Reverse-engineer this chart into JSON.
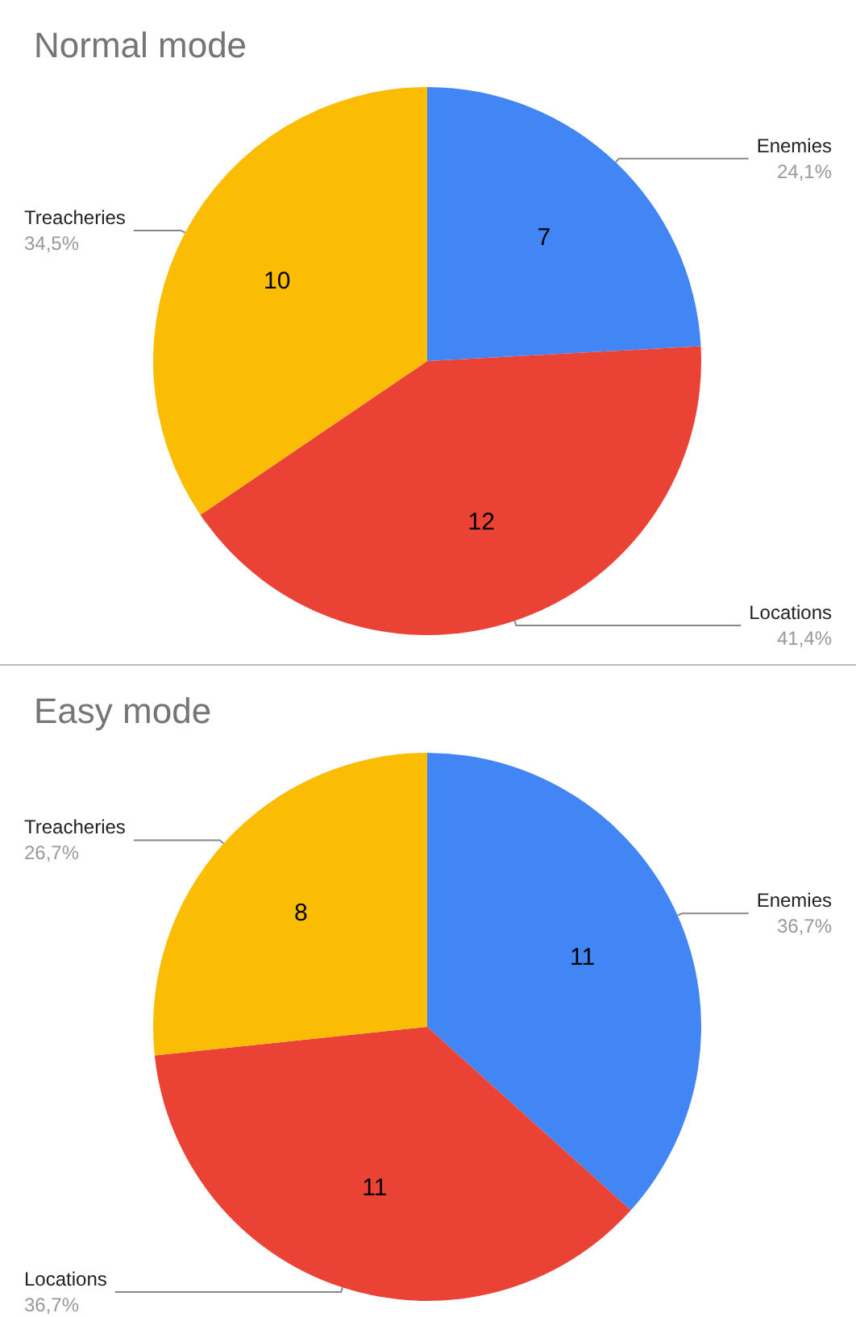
{
  "chart_data": [
    {
      "type": "pie",
      "title": "Normal mode",
      "categories": [
        "Enemies",
        "Locations",
        "Treacheries"
      ],
      "values": [
        7,
        12,
        10
      ],
      "colors": [
        "#4285f4",
        "#ea4335",
        "#fbbc04"
      ],
      "data_labels": true,
      "annotations": [
        "24,1%",
        "41,4%",
        "34,5%"
      ],
      "legend": false
    },
    {
      "type": "pie",
      "title": "Easy mode",
      "categories": [
        "Enemies",
        "Locations",
        "Treacheries"
      ],
      "values": [
        11,
        11,
        8
      ],
      "colors": [
        "#4285f4",
        "#ea4335",
        "#fbbc04"
      ],
      "data_labels": true,
      "annotations": [
        "36,7%",
        "36,7%",
        "26,7%"
      ],
      "legend": false
    }
  ]
}
